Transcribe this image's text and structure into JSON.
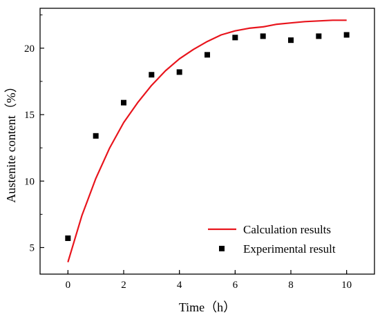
{
  "chart_data": {
    "type": "line",
    "xlabel": "Time（h）",
    "ylabel": "Austenite content（%）",
    "xlim": [
      -1,
      11
    ],
    "ylim": [
      3,
      23
    ],
    "x_ticks": [
      0,
      2,
      4,
      6,
      8,
      10
    ],
    "y_ticks": [
      5,
      10,
      15,
      20
    ],
    "legend_position": "bottom-right",
    "grid": false,
    "series": [
      {
        "name": "Calculation results",
        "kind": "line",
        "color": "#e8141c",
        "x": [
          0,
          0.5,
          1,
          1.5,
          2,
          2.5,
          3,
          3.5,
          4,
          4.5,
          5,
          5.5,
          6,
          6.5,
          7,
          7.5,
          8,
          8.5,
          9,
          9.5,
          10
        ],
        "y": [
          3.9,
          7.4,
          10.2,
          12.5,
          14.4,
          15.9,
          17.2,
          18.3,
          19.2,
          19.9,
          20.5,
          21.0,
          21.3,
          21.5,
          21.6,
          21.8,
          21.9,
          22.0,
          22.05,
          22.1,
          22.1
        ]
      },
      {
        "name": "Experimental result",
        "kind": "scatter",
        "color": "#000000",
        "x": [
          0,
          1,
          2,
          3,
          4,
          5,
          6,
          7,
          8,
          9,
          10
        ],
        "y": [
          5.7,
          13.4,
          15.9,
          18.0,
          18.2,
          19.5,
          20.8,
          20.9,
          20.6,
          20.9,
          21.0
        ]
      }
    ]
  }
}
